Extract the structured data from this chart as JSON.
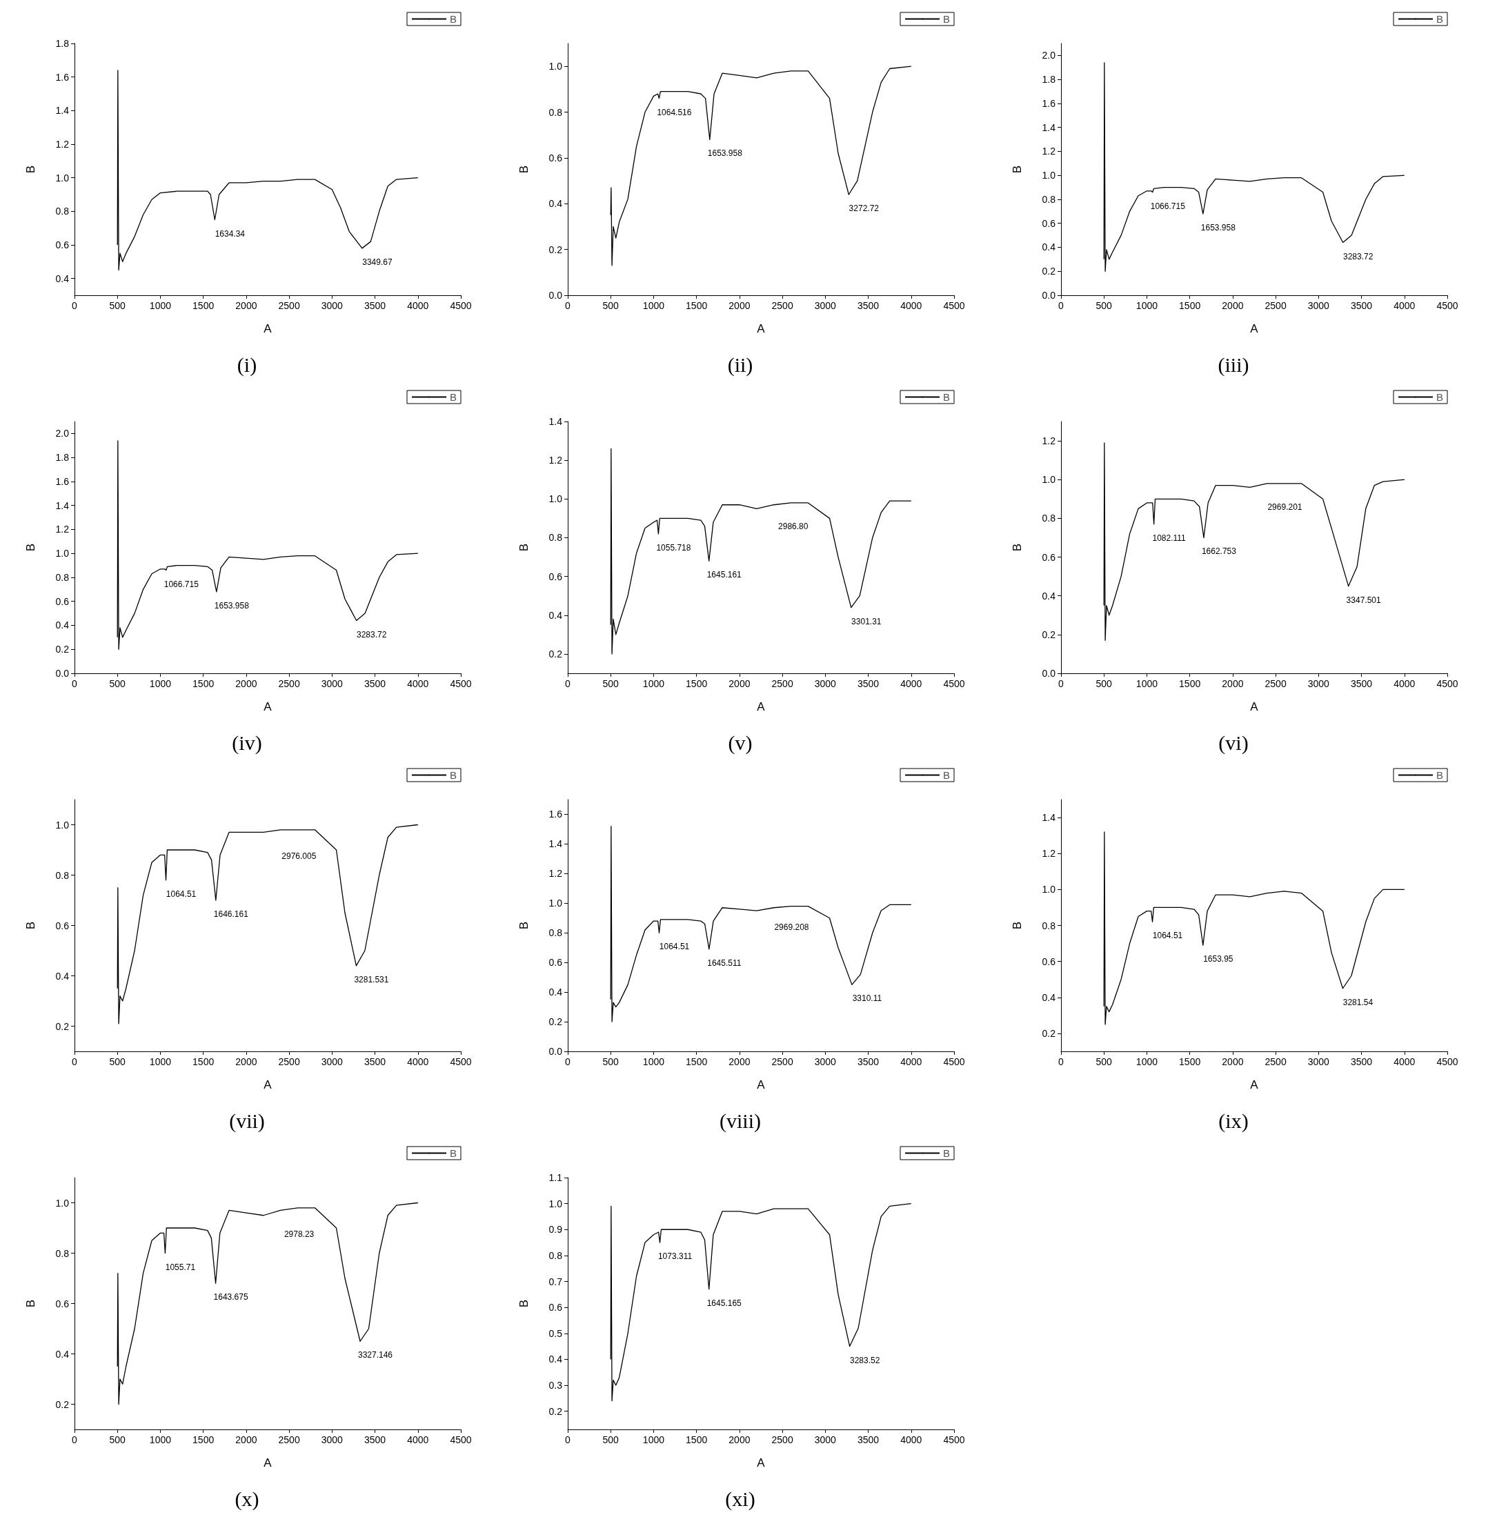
{
  "chart_data": [
    {
      "type": "line",
      "title": "(i)",
      "xlabel": "A",
      "ylabel": "B",
      "legend": "top right",
      "xlim": [
        0,
        4500
      ],
      "xticks": [
        0,
        500,
        1000,
        1500,
        2000,
        2500,
        3000,
        3500,
        4000,
        4500
      ],
      "ylim": [
        0.3,
        1.8
      ],
      "yticks": [
        0.4,
        0.6,
        0.8,
        {
          "value": 1,
          "label": "1.0"
        },
        1.2,
        1.4,
        1.6,
        1.8
      ],
      "x": [
        500,
        505,
        515,
        530,
        560,
        600,
        700,
        800,
        900,
        1000,
        1200,
        1400,
        1550,
        1584,
        1634,
        1684,
        1800,
        2000,
        2200,
        2400,
        2600,
        2800,
        3000,
        3100,
        3200,
        3350,
        3450,
        3550,
        3650,
        3750,
        4000
      ],
      "series": [
        {
          "name": "B",
          "color": "#000000",
          "values": [
            0.6,
            1.64,
            0.45,
            0.55,
            0.5,
            0.55,
            0.65,
            0.78,
            0.87,
            0.91,
            0.92,
            0.92,
            0.92,
            0.9,
            0.75,
            0.9,
            0.97,
            0.97,
            0.98,
            0.98,
            0.99,
            0.99,
            0.93,
            0.82,
            0.68,
            0.58,
            0.62,
            0.8,
            0.95,
            0.99,
            1.0
          ]
        }
      ],
      "annotations": [
        {
          "text": "1634.34",
          "x": 1634,
          "y": 0.75
        },
        {
          "text": "3349.67",
          "x": 3350,
          "y": 0.58
        }
      ]
    },
    {
      "type": "line",
      "title": "(ii)",
      "xlabel": "A",
      "ylabel": "B",
      "legend": "top right",
      "xlim": [
        0,
        4500
      ],
      "xticks": [
        0,
        500,
        1000,
        1500,
        2000,
        2500,
        3000,
        3500,
        4000,
        4500
      ],
      "ylim": [
        0,
        1.1
      ],
      "yticks": [
        {
          "value": 0,
          "label": "0.0"
        },
        0.2,
        0.4,
        0.6,
        0.8,
        {
          "value": 1,
          "label": "1.0"
        }
      ],
      "x": [
        500,
        505,
        515,
        530,
        560,
        600,
        700,
        800,
        900,
        1000,
        1049,
        1064,
        1079,
        1200,
        1400,
        1550,
        1604,
        1654,
        1704,
        1800,
        2000,
        2200,
        2400,
        2600,
        2800,
        3050,
        3150,
        3273,
        3373,
        3550,
        3650,
        3750,
        4000
      ],
      "series": [
        {
          "name": "B",
          "color": "#000000",
          "values": [
            0.35,
            0.47,
            0.13,
            0.3,
            0.25,
            0.32,
            0.42,
            0.65,
            0.8,
            0.87,
            0.88,
            0.86,
            0.89,
            0.89,
            0.89,
            0.88,
            0.86,
            0.68,
            0.88,
            0.97,
            0.96,
            0.95,
            0.97,
            0.98,
            0.98,
            0.86,
            0.62,
            0.44,
            0.5,
            0.8,
            0.93,
            0.99,
            1.0
          ]
        }
      ],
      "annotations": [
        {
          "text": "1064.516",
          "x": 1064,
          "y": 0.86
        },
        {
          "text": "1653.958",
          "x": 1654,
          "y": 0.68
        },
        {
          "text": "3272.72",
          "x": 3273,
          "y": 0.44
        }
      ]
    },
    {
      "type": "line",
      "title": "(iii)",
      "xlabel": "A",
      "ylabel": "B",
      "legend": "top right",
      "xlim": [
        0,
        4500
      ],
      "xticks": [
        0,
        500,
        1000,
        1500,
        2000,
        2500,
        3000,
        3500,
        4000,
        4500
      ],
      "ylim": [
        0,
        2.1
      ],
      "yticks": [
        {
          "value": 0,
          "label": "0.0"
        },
        0.2,
        0.4,
        0.6,
        0.8,
        {
          "value": 1,
          "label": "1.0"
        },
        1.2,
        1.4,
        1.6,
        1.8,
        {
          "value": 2,
          "label": "2.0"
        }
      ],
      "x": [
        500,
        505,
        515,
        530,
        560,
        600,
        700,
        800,
        900,
        1000,
        1051,
        1067,
        1081,
        1200,
        1400,
        1550,
        1604,
        1654,
        1704,
        1800,
        2000,
        2200,
        2400,
        2600,
        2800,
        3050,
        3150,
        3284,
        3384,
        3550,
        3650,
        3750,
        4000
      ],
      "series": [
        {
          "name": "B",
          "color": "#000000",
          "values": [
            0.3,
            1.94,
            0.2,
            0.38,
            0.3,
            0.36,
            0.5,
            0.7,
            0.83,
            0.87,
            0.87,
            0.86,
            0.89,
            0.9,
            0.9,
            0.89,
            0.86,
            0.68,
            0.88,
            0.97,
            0.96,
            0.95,
            0.97,
            0.98,
            0.98,
            0.86,
            0.62,
            0.44,
            0.5,
            0.8,
            0.93,
            0.99,
            1.0
          ]
        }
      ],
      "annotations": [
        {
          "text": "1066.715",
          "x": 1067,
          "y": 0.86
        },
        {
          "text": "1653.958",
          "x": 1654,
          "y": 0.68
        },
        {
          "text": "3283.72",
          "x": 3284,
          "y": 0.44
        }
      ]
    },
    {
      "type": "line",
      "title": "(iv)",
      "xlabel": "A",
      "ylabel": "B",
      "legend": "top right",
      "xlim": [
        0,
        4500
      ],
      "xticks": [
        0,
        500,
        1000,
        1500,
        2000,
        2500,
        3000,
        3500,
        4000,
        4500
      ],
      "ylim": [
        0,
        2.1
      ],
      "yticks": [
        {
          "value": 0,
          "label": "0.0"
        },
        0.2,
        0.4,
        0.6,
        0.8,
        {
          "value": 1,
          "label": "1.0"
        },
        1.2,
        1.4,
        1.6,
        1.8,
        {
          "value": 2,
          "label": "2.0"
        }
      ],
      "x": [
        500,
        505,
        515,
        530,
        560,
        600,
        700,
        800,
        900,
        1000,
        1051,
        1067,
        1081,
        1200,
        1400,
        1550,
        1604,
        1654,
        1704,
        1800,
        2000,
        2200,
        2400,
        2600,
        2800,
        3050,
        3150,
        3284,
        3384,
        3550,
        3650,
        3750,
        4000
      ],
      "series": [
        {
          "name": "B",
          "color": "#000000",
          "values": [
            0.3,
            1.94,
            0.2,
            0.38,
            0.3,
            0.36,
            0.5,
            0.7,
            0.83,
            0.87,
            0.87,
            0.86,
            0.89,
            0.9,
            0.9,
            0.89,
            0.86,
            0.68,
            0.88,
            0.97,
            0.96,
            0.95,
            0.97,
            0.98,
            0.98,
            0.86,
            0.62,
            0.44,
            0.5,
            0.8,
            0.93,
            0.99,
            1.0
          ]
        }
      ],
      "annotations": [
        {
          "text": "1066.715",
          "x": 1067,
          "y": 0.86
        },
        {
          "text": "1653.958",
          "x": 1654,
          "y": 0.68
        },
        {
          "text": "3283.72",
          "x": 3284,
          "y": 0.44
        }
      ]
    },
    {
      "type": "line",
      "title": "(v)",
      "xlabel": "A",
      "ylabel": "B",
      "legend": "top right",
      "xlim": [
        0,
        4500
      ],
      "xticks": [
        0,
        500,
        1000,
        1500,
        2000,
        2500,
        3000,
        3500,
        4000,
        4500
      ],
      "ylim": [
        0.1,
        1.4
      ],
      "yticks": [
        0.2,
        0.4,
        0.6,
        0.8,
        {
          "value": 1,
          "label": "1.0"
        },
        1.2,
        1.4
      ],
      "x": [
        500,
        505,
        515,
        530,
        560,
        600,
        700,
        800,
        900,
        1000,
        1041,
        1056,
        1071,
        1200,
        1400,
        1550,
        1595,
        1645,
        1695,
        1800,
        2000,
        2200,
        2400,
        2600,
        2800,
        3050,
        3150,
        3301,
        3401,
        3550,
        3650,
        3750,
        4000
      ],
      "series": [
        {
          "name": "B",
          "color": "#000000",
          "values": [
            0.35,
            1.26,
            0.2,
            0.38,
            0.3,
            0.36,
            0.5,
            0.72,
            0.85,
            0.88,
            0.89,
            0.82,
            0.9,
            0.9,
            0.9,
            0.89,
            0.86,
            0.68,
            0.88,
            0.97,
            0.97,
            0.95,
            0.97,
            0.98,
            0.98,
            0.9,
            0.7,
            0.44,
            0.5,
            0.8,
            0.93,
            0.99,
            0.99
          ]
        }
      ],
      "annotations": [
        {
          "text": "1055.718",
          "x": 1056,
          "y": 0.82
        },
        {
          "text": "1645.161",
          "x": 1645,
          "y": 0.68
        },
        {
          "text": "2986.80",
          "x": 2987,
          "y": 0.93
        },
        {
          "text": "3301.31",
          "x": 3301,
          "y": 0.44
        }
      ]
    },
    {
      "type": "line",
      "title": "(vi)",
      "xlabel": "A",
      "ylabel": "B",
      "legend": "top right",
      "xlim": [
        0,
        4500
      ],
      "xticks": [
        0,
        500,
        1000,
        1500,
        2000,
        2500,
        3000,
        3500,
        4000,
        4500
      ],
      "ylim": [
        0,
        1.3
      ],
      "yticks": [
        {
          "value": 0,
          "label": "0.0"
        },
        0.2,
        0.4,
        0.6,
        0.8,
        {
          "value": 1,
          "label": "1.0"
        },
        1.2
      ],
      "x": [
        500,
        505,
        515,
        530,
        560,
        600,
        700,
        800,
        900,
        1000,
        1067,
        1082,
        1097,
        1200,
        1400,
        1550,
        1613,
        1663,
        1713,
        1800,
        2000,
        2200,
        2400,
        2600,
        2800,
        3050,
        3150,
        3348,
        3448,
        3550,
        3650,
        3750,
        4000
      ],
      "series": [
        {
          "name": "B",
          "color": "#000000",
          "values": [
            0.35,
            1.19,
            0.17,
            0.35,
            0.3,
            0.35,
            0.5,
            0.72,
            0.85,
            0.88,
            0.88,
            0.77,
            0.9,
            0.9,
            0.9,
            0.89,
            0.86,
            0.7,
            0.88,
            0.97,
            0.97,
            0.96,
            0.98,
            0.98,
            0.98,
            0.9,
            0.75,
            0.45,
            0.55,
            0.85,
            0.97,
            0.99,
            1.0
          ]
        }
      ],
      "annotations": [
        {
          "text": "1082.111",
          "x": 1082,
          "y": 0.77
        },
        {
          "text": "1662.753",
          "x": 1663,
          "y": 0.7
        },
        {
          "text": "2969.201",
          "x": 2969,
          "y": 0.93
        },
        {
          "text": "3347.501",
          "x": 3348,
          "y": 0.45
        }
      ]
    },
    {
      "type": "line",
      "title": "(vii)",
      "xlabel": "A",
      "ylabel": "B",
      "legend": "top right",
      "xlim": [
        0,
        4500
      ],
      "xticks": [
        0,
        500,
        1000,
        1500,
        2000,
        2500,
        3000,
        3500,
        4000,
        4500
      ],
      "ylim": [
        0.1,
        1.1
      ],
      "yticks": [
        0.2,
        0.4,
        0.6,
        0.8,
        {
          "value": 1,
          "label": "1.0"
        }
      ],
      "x": [
        500,
        505,
        515,
        530,
        560,
        600,
        700,
        800,
        900,
        1000,
        1050,
        1065,
        1080,
        1200,
        1400,
        1550,
        1596,
        1646,
        1696,
        1800,
        2000,
        2200,
        2400,
        2600,
        2800,
        3050,
        3150,
        3282,
        3382,
        3550,
        3650,
        3750,
        4000
      ],
      "series": [
        {
          "name": "B",
          "color": "#000000",
          "values": [
            0.35,
            0.75,
            0.21,
            0.32,
            0.3,
            0.35,
            0.5,
            0.72,
            0.85,
            0.88,
            0.88,
            0.78,
            0.9,
            0.9,
            0.9,
            0.89,
            0.86,
            0.7,
            0.88,
            0.97,
            0.97,
            0.97,
            0.98,
            0.98,
            0.98,
            0.9,
            0.65,
            0.44,
            0.5,
            0.8,
            0.95,
            0.99,
            1.0
          ]
        }
      ],
      "annotations": [
        {
          "text": "1064.51",
          "x": 1065,
          "y": 0.78
        },
        {
          "text": "1646.161",
          "x": 1646,
          "y": 0.7
        },
        {
          "text": "2976.005",
          "x": 2976,
          "y": 0.93
        },
        {
          "text": "3281.531",
          "x": 3282,
          "y": 0.44
        }
      ]
    },
    {
      "type": "line",
      "title": "(viii)",
      "xlabel": "A",
      "ylabel": "B",
      "legend": "top right",
      "xlim": [
        0,
        4500
      ],
      "xticks": [
        0,
        500,
        1000,
        1500,
        2000,
        2500,
        3000,
        3500,
        4000,
        4500
      ],
      "ylim": [
        0,
        1.7
      ],
      "yticks": [
        {
          "value": 0,
          "label": "0.0"
        },
        0.2,
        0.4,
        0.6,
        0.8,
        {
          "value": 1,
          "label": "1.0"
        },
        1.2,
        1.4,
        1.6
      ],
      "x": [
        500,
        505,
        515,
        530,
        560,
        600,
        700,
        800,
        900,
        1000,
        1050,
        1065,
        1080,
        1200,
        1400,
        1550,
        1596,
        1646,
        1696,
        1800,
        2000,
        2200,
        2400,
        2600,
        2800,
        3050,
        3150,
        3310,
        3410,
        3550,
        3650,
        3750,
        4000
      ],
      "series": [
        {
          "name": "B",
          "color": "#000000",
          "values": [
            0.35,
            1.52,
            0.2,
            0.33,
            0.3,
            0.33,
            0.45,
            0.65,
            0.82,
            0.88,
            0.88,
            0.8,
            0.89,
            0.89,
            0.89,
            0.88,
            0.86,
            0.69,
            0.88,
            0.97,
            0.96,
            0.95,
            0.97,
            0.98,
            0.98,
            0.9,
            0.7,
            0.45,
            0.52,
            0.8,
            0.95,
            0.99,
            0.99
          ]
        }
      ],
      "annotations": [
        {
          "text": "1064.51",
          "x": 1065,
          "y": 0.8
        },
        {
          "text": "1645.511",
          "x": 1646,
          "y": 0.69
        },
        {
          "text": "2969.208",
          "x": 2969,
          "y": 0.93
        },
        {
          "text": "3310.11",
          "x": 3310,
          "y": 0.45
        }
      ]
    },
    {
      "type": "line",
      "title": "(ix)",
      "xlabel": "A",
      "ylabel": "B",
      "legend": "top right",
      "xlim": [
        0,
        4500
      ],
      "xticks": [
        0,
        500,
        1000,
        1500,
        2000,
        2500,
        3000,
        3500,
        4000,
        4500
      ],
      "ylim": [
        0.1,
        1.5
      ],
      "yticks": [
        0.2,
        0.4,
        0.6,
        0.8,
        {
          "value": 1,
          "label": "1.0"
        },
        1.2,
        1.4
      ],
      "x": [
        500,
        505,
        515,
        530,
        560,
        600,
        700,
        800,
        900,
        1000,
        1050,
        1065,
        1080,
        1200,
        1400,
        1550,
        1604,
        1654,
        1704,
        1800,
        2000,
        2200,
        2400,
        2600,
        2800,
        3050,
        3150,
        3282,
        3382,
        3550,
        3650,
        3750,
        4000
      ],
      "series": [
        {
          "name": "B",
          "color": "#000000",
          "values": [
            0.35,
            1.32,
            0.25,
            0.35,
            0.32,
            0.36,
            0.5,
            0.7,
            0.85,
            0.88,
            0.88,
            0.82,
            0.9,
            0.9,
            0.9,
            0.89,
            0.86,
            0.69,
            0.88,
            0.97,
            0.97,
            0.96,
            0.98,
            0.99,
            0.98,
            0.88,
            0.65,
            0.45,
            0.52,
            0.82,
            0.95,
            1.0,
            1.0
          ]
        }
      ],
      "annotations": [
        {
          "text": "1064.51",
          "x": 1065,
          "y": 0.82
        },
        {
          "text": "1653.95",
          "x": 1654,
          "y": 0.69
        },
        {
          "text": "3281.54",
          "x": 3282,
          "y": 0.45
        }
      ]
    },
    {
      "type": "line",
      "title": "(x)",
      "xlabel": "A",
      "ylabel": "B",
      "legend": "top right",
      "xlim": [
        0,
        4500
      ],
      "xticks": [
        0,
        500,
        1000,
        1500,
        2000,
        2500,
        3000,
        3500,
        4000,
        4500
      ],
      "ylim": [
        0.1,
        1.1
      ],
      "yticks": [
        0.2,
        0.4,
        0.6,
        0.8,
        {
          "value": 1,
          "label": "1.0"
        }
      ],
      "x": [
        500,
        505,
        515,
        530,
        560,
        600,
        700,
        800,
        900,
        1000,
        1041,
        1056,
        1071,
        1200,
        1400,
        1550,
        1594,
        1644,
        1694,
        1800,
        2000,
        2200,
        2400,
        2600,
        2800,
        3050,
        3150,
        3327,
        3427,
        3550,
        3650,
        3750,
        4000
      ],
      "series": [
        {
          "name": "B",
          "color": "#000000",
          "values": [
            0.35,
            0.72,
            0.2,
            0.3,
            0.28,
            0.35,
            0.5,
            0.72,
            0.85,
            0.88,
            0.88,
            0.8,
            0.9,
            0.9,
            0.9,
            0.89,
            0.86,
            0.68,
            0.88,
            0.97,
            0.96,
            0.95,
            0.97,
            0.98,
            0.98,
            0.9,
            0.7,
            0.45,
            0.5,
            0.8,
            0.95,
            0.99,
            1.0
          ]
        }
      ],
      "annotations": [
        {
          "text": "1055.71",
          "x": 1056,
          "y": 0.8
        },
        {
          "text": "1643.675",
          "x": 1644,
          "y": 0.68
        },
        {
          "text": "2978.23",
          "x": 2978,
          "y": 0.93
        },
        {
          "text": "3327.146",
          "x": 3327,
          "y": 0.45
        }
      ]
    },
    {
      "type": "line",
      "title": "(xi)",
      "xlabel": "A",
      "ylabel": "B",
      "legend": "top right",
      "xlim": [
        0,
        4500
      ],
      "xticks": [
        0,
        500,
        1000,
        1500,
        2000,
        2500,
        3000,
        3500,
        4000,
        4500
      ],
      "ylim": [
        0.13,
        1.1
      ],
      "yticks": [
        0.2,
        0.3,
        0.4,
        0.5,
        0.6,
        0.7,
        0.8,
        0.9,
        {
          "value": 1,
          "label": "1.0"
        },
        1.1
      ],
      "x": [
        500,
        505,
        515,
        530,
        560,
        600,
        700,
        800,
        900,
        1000,
        1058,
        1073,
        1088,
        1200,
        1400,
        1550,
        1595,
        1645,
        1695,
        1800,
        2000,
        2200,
        2400,
        2600,
        2800,
        3050,
        3150,
        3284,
        3384,
        3550,
        3650,
        3750,
        4000
      ],
      "series": [
        {
          "name": "B",
          "color": "#000000",
          "values": [
            0.4,
            0.99,
            0.24,
            0.32,
            0.3,
            0.33,
            0.5,
            0.72,
            0.85,
            0.88,
            0.89,
            0.85,
            0.9,
            0.9,
            0.9,
            0.89,
            0.86,
            0.67,
            0.88,
            0.97,
            0.97,
            0.96,
            0.98,
            0.98,
            0.98,
            0.88,
            0.65,
            0.45,
            0.52,
            0.82,
            0.95,
            0.99,
            1.0
          ]
        }
      ],
      "annotations": [
        {
          "text": "1073.311",
          "x": 1073,
          "y": 0.85
        },
        {
          "text": "1645.165",
          "x": 1645,
          "y": 0.67
        },
        {
          "text": "3283.52",
          "x": 3284,
          "y": 0.45
        }
      ]
    }
  ]
}
